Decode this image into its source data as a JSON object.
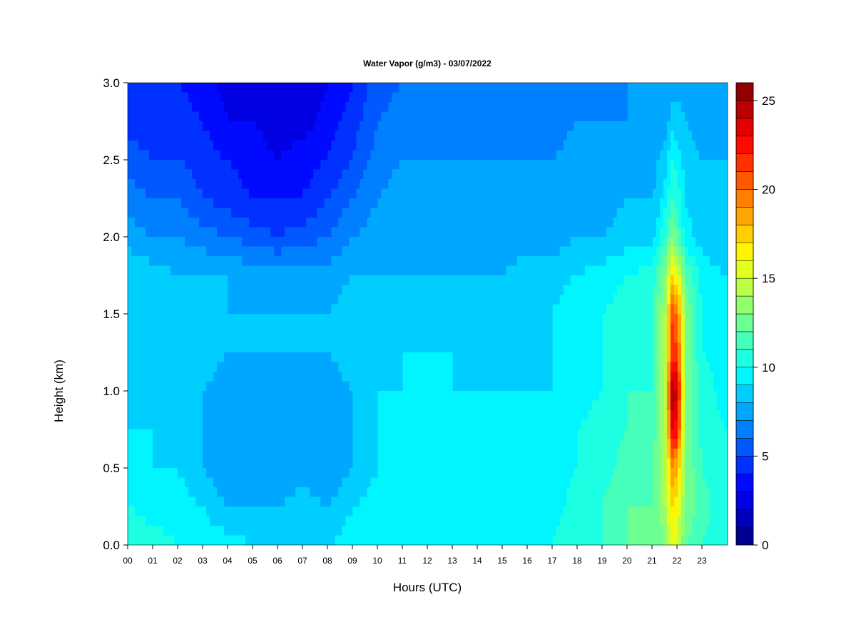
{
  "chart_data": {
    "type": "heatmap",
    "title": "Water Vapor (g/m3) - 03/07/2022",
    "xlabel": "Hours (UTC)",
    "ylabel": "Height (km)",
    "xlim": [
      0,
      24
    ],
    "ylim": [
      0,
      3
    ],
    "x_ticks": [
      "00",
      "01",
      "02",
      "03",
      "04",
      "05",
      "06",
      "07",
      "08",
      "09",
      "10",
      "11",
      "12",
      "13",
      "14",
      "15",
      "16",
      "17",
      "18",
      "19",
      "20",
      "21",
      "22",
      "23"
    ],
    "y_ticks": [
      "0.0",
      "0.5",
      "1.0",
      "1.5",
      "2.0",
      "2.5",
      "3.0"
    ],
    "colorbar": {
      "min": 0,
      "max": 26,
      "ticks": [
        "0",
        "5",
        "10",
        "15",
        "20",
        "25"
      ],
      "levels": 26
    },
    "heights_km": [
      0.0,
      0.25,
      0.5,
      0.75,
      1.0,
      1.25,
      1.5,
      1.75,
      2.0,
      2.25,
      2.5,
      2.75,
      3.0
    ],
    "hours": [
      0,
      1,
      2,
      3,
      4,
      5,
      6,
      7,
      8,
      9,
      10,
      11,
      12,
      13,
      14,
      15,
      16,
      17,
      18,
      19,
      20,
      21,
      21.5,
      21.8,
      22,
      22.3,
      23,
      24
    ],
    "values_g_m3": [
      [
        11.0,
        10.5,
        10.0,
        9.5,
        9.5,
        9.0,
        9.0,
        9.0,
        9.0,
        9.5,
        10.0,
        10.0,
        9.0,
        9.0,
        9.5,
        9.5,
        9.5,
        10.0,
        11.0,
        11.0,
        12.0,
        12.0,
        13.0,
        16.0,
        15.0,
        12.0,
        11.0,
        10.0
      ],
      [
        10.0,
        9.5,
        9.5,
        9.0,
        8.0,
        8.0,
        8.0,
        8.5,
        8.0,
        9.0,
        9.5,
        9.5,
        9.5,
        9.5,
        9.5,
        9.0,
        9.0,
        9.5,
        10.5,
        11.0,
        12.0,
        12.0,
        14.0,
        17.0,
        16.0,
        13.0,
        11.5,
        10.0
      ],
      [
        9.5,
        9.0,
        9.0,
        8.0,
        7.0,
        7.0,
        7.0,
        7.5,
        7.0,
        8.0,
        9.0,
        9.5,
        9.5,
        9.5,
        9.0,
        9.0,
        9.0,
        9.5,
        10.0,
        10.5,
        11.5,
        12.0,
        14.0,
        19.0,
        18.0,
        13.0,
        11.0,
        10.0
      ],
      [
        9.0,
        9.0,
        8.5,
        8.0,
        7.5,
        7.0,
        7.5,
        8.0,
        7.0,
        8.0,
        9.0,
        9.5,
        9.0,
        9.0,
        9.0,
        9.0,
        9.0,
        9.0,
        10.0,
        10.5,
        11.0,
        11.5,
        14.0,
        24.0,
        22.0,
        13.0,
        10.5,
        10.0
      ],
      [
        9.0,
        8.5,
        8.5,
        8.0,
        7.5,
        7.5,
        7.5,
        8.0,
        7.5,
        8.0,
        9.0,
        9.0,
        9.0,
        9.0,
        9.0,
        9.0,
        9.0,
        9.0,
        9.5,
        10.0,
        11.0,
        11.0,
        14.0,
        25.0,
        24.0,
        13.0,
        10.5,
        9.5
      ],
      [
        9.0,
        8.5,
        8.5,
        8.5,
        8.0,
        8.0,
        8.0,
        8.0,
        8.0,
        8.5,
        8.5,
        9.0,
        9.0,
        9.0,
        8.5,
        8.5,
        8.5,
        9.0,
        9.5,
        10.0,
        10.5,
        11.0,
        14.0,
        22.0,
        21.0,
        13.0,
        10.0,
        9.5
      ],
      [
        9.0,
        8.5,
        8.5,
        8.0,
        8.0,
        8.0,
        8.0,
        8.0,
        8.0,
        8.5,
        8.5,
        8.5,
        8.5,
        9.0,
        8.5,
        8.5,
        8.5,
        9.0,
        10.0,
        10.0,
        10.5,
        11.0,
        14.0,
        21.0,
        20.0,
        13.0,
        10.0,
        9.5
      ],
      [
        9.0,
        8.5,
        8.0,
        8.0,
        8.0,
        7.5,
        7.5,
        7.5,
        7.5,
        8.0,
        8.0,
        8.0,
        8.0,
        8.0,
        8.0,
        8.0,
        8.5,
        8.5,
        9.0,
        9.5,
        10.0,
        10.5,
        13.0,
        17.0,
        16.0,
        12.0,
        9.5,
        9.0
      ],
      [
        7.5,
        7.0,
        7.0,
        6.5,
        6.0,
        5.5,
        5.0,
        5.5,
        6.0,
        7.0,
        7.5,
        7.5,
        7.5,
        7.5,
        7.5,
        7.5,
        7.5,
        7.5,
        8.0,
        8.0,
        8.5,
        8.5,
        11.0,
        13.0,
        12.0,
        9.5,
        8.5,
        8.0
      ],
      [
        6.5,
        6.0,
        6.0,
        5.0,
        4.5,
        4.0,
        4.0,
        4.0,
        5.0,
        6.0,
        7.0,
        7.5,
        7.5,
        7.0,
        7.0,
        7.0,
        7.0,
        7.0,
        7.5,
        7.5,
        8.0,
        8.0,
        9.5,
        11.0,
        10.5,
        9.0,
        8.0,
        8.0
      ],
      [
        5.5,
        5.0,
        5.0,
        4.5,
        4.0,
        3.5,
        3.0,
        3.5,
        4.0,
        5.0,
        6.5,
        7.0,
        7.0,
        7.0,
        7.0,
        7.0,
        7.0,
        7.0,
        7.5,
        7.5,
        7.5,
        7.5,
        8.5,
        10.0,
        9.5,
        8.5,
        8.0,
        8.0
      ],
      [
        4.5,
        4.5,
        4.5,
        4.0,
        3.0,
        3.0,
        2.5,
        2.5,
        3.5,
        4.5,
        6.0,
        6.5,
        6.5,
        6.5,
        6.5,
        6.5,
        6.5,
        6.5,
        7.0,
        7.0,
        7.0,
        7.0,
        7.5,
        8.5,
        8.5,
        8.0,
        7.5,
        7.5
      ],
      [
        4.0,
        4.0,
        4.0,
        3.5,
        2.5,
        2.5,
        2.0,
        2.0,
        3.0,
        4.0,
        5.5,
        6.0,
        6.0,
        6.0,
        6.0,
        6.0,
        6.0,
        6.0,
        6.5,
        6.5,
        7.0,
        7.0,
        7.0,
        7.5,
        7.5,
        7.5,
        7.5,
        7.5
      ]
    ]
  }
}
